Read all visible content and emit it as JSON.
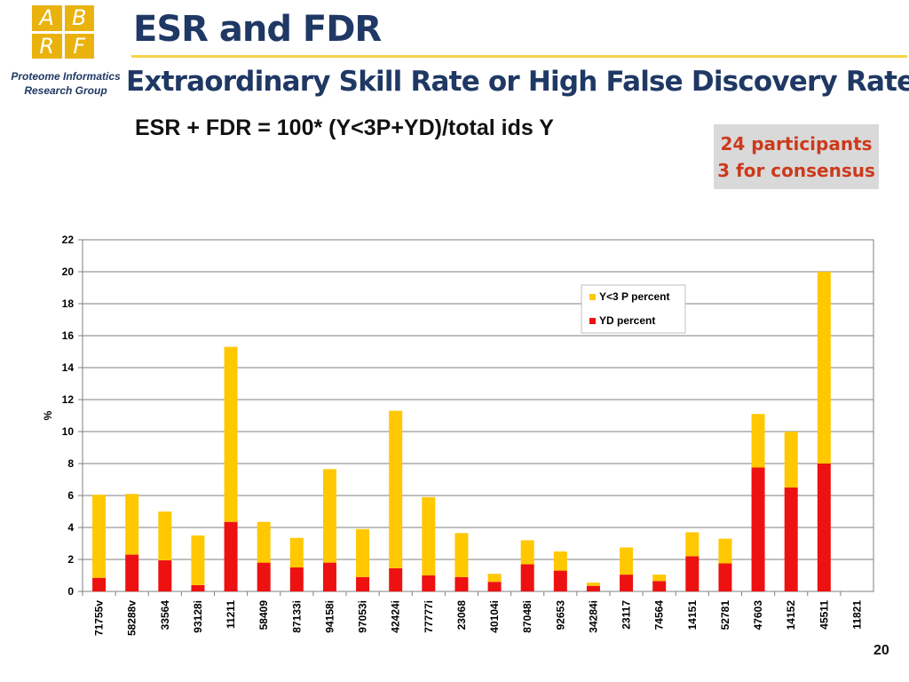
{
  "logo": {
    "letters": [
      "A",
      "B",
      "R",
      "F"
    ],
    "color": "#e9b20d"
  },
  "header": {
    "group_line1": "Proteome Informatics",
    "group_line2": "Research Group",
    "title": "ESR and FDR",
    "subtitle": "Extraordinary Skill Rate or High False Discovery Rate?",
    "formula": "ESR + FDR = 100* (Y<3P+YD)/total ids Y"
  },
  "note": {
    "line1": "24 participants",
    "line2": "3 for consensus"
  },
  "page_number": "20",
  "chart_data": {
    "type": "bar",
    "stacked": true,
    "ylabel": "%",
    "xlabel": "",
    "ylim": [
      0,
      22
    ],
    "yticks": [
      0,
      2,
      4,
      6,
      8,
      10,
      12,
      14,
      16,
      18,
      20,
      22
    ],
    "grid": true,
    "legend_position": "top-right",
    "categories": [
      "71755v",
      "58288v",
      "33564",
      "93128i",
      "11211",
      "58409",
      "87133i",
      "94158i",
      "97053i",
      "42424i",
      "77777i",
      "23068",
      "40104i",
      "87048i",
      "92653",
      "34284i",
      "23117",
      "74564",
      "14151",
      "52781",
      "47603",
      "14152",
      "45511",
      "11821"
    ],
    "series": [
      {
        "name": "YD percent",
        "color": "#ee1111",
        "values": [
          0.85,
          2.3,
          1.95,
          0.4,
          4.35,
          1.8,
          1.5,
          1.8,
          0.9,
          1.45,
          1.0,
          0.9,
          0.6,
          1.7,
          1.3,
          0.35,
          1.05,
          0.65,
          2.2,
          1.75,
          7.75,
          6.5,
          8.0,
          0
        ]
      },
      {
        "name": "Y<3 P percent",
        "color": "#ffc800",
        "values": [
          5.2,
          3.8,
          3.05,
          3.1,
          10.95,
          2.55,
          1.85,
          5.85,
          3.0,
          9.85,
          4.9,
          2.75,
          0.5,
          1.5,
          1.2,
          0.2,
          1.7,
          0.4,
          1.5,
          1.55,
          3.35,
          3.5,
          12.0,
          0
        ]
      }
    ],
    "legend_order": [
      "Y<3 P percent",
      "YD percent"
    ]
  }
}
